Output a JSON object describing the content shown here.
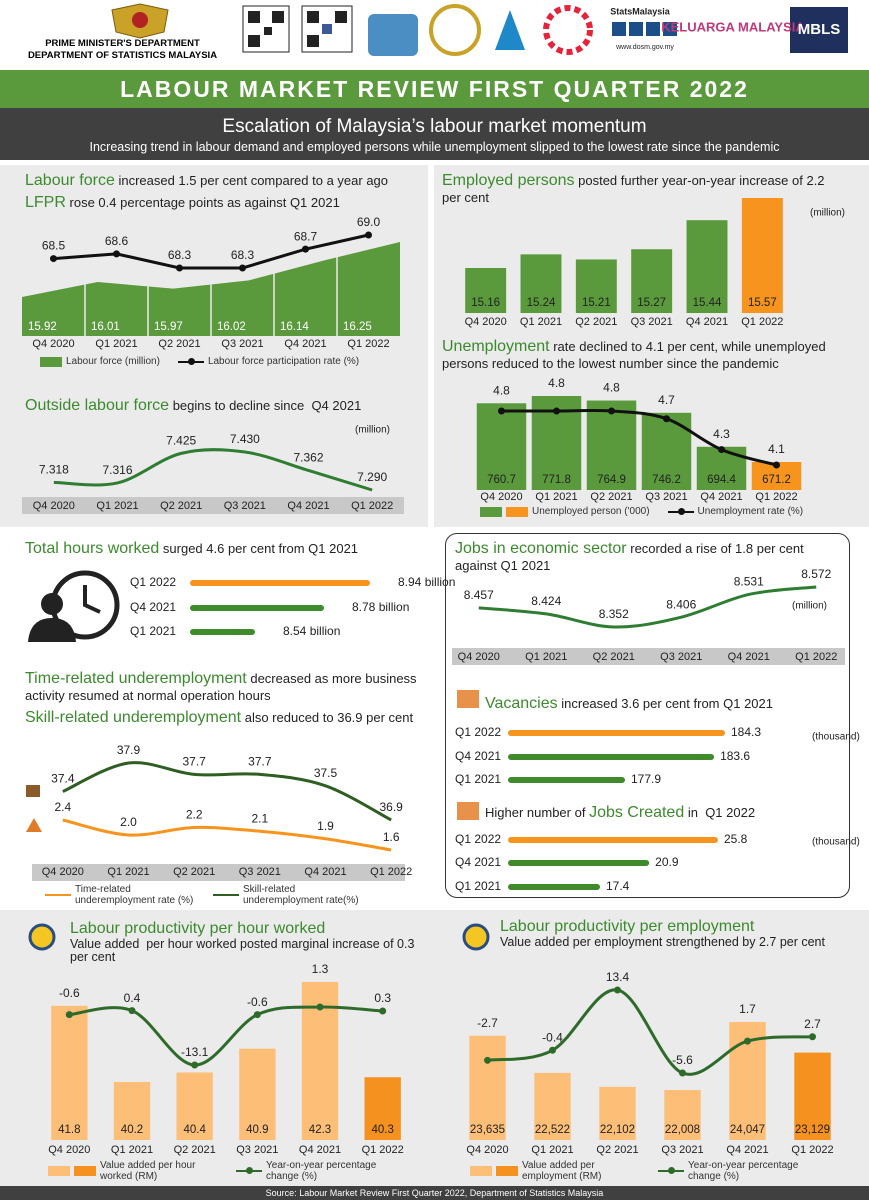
{
  "header": {
    "org": [
      "PRIME MINISTER'S DEPARTMENT",
      "DEPARTMENT OF STATISTICS MALAYSIA"
    ],
    "logos": [
      "StatsMalaysia",
      "www.dosm.gov.my",
      "KELUARGA MALAYSIA",
      "MBLS"
    ],
    "title": "LABOUR MARKET REVIEW FIRST QUARTER 2022",
    "headline": "Escalation of Malaysia’s labour market momentum",
    "subheadline": "Increasing trend in labour demand and employed persons while unemployment slipped to the lowest rate since the pandemic"
  },
  "chart_data": [
    {
      "type": "combo",
      "titles": [
        {
          "parts": [
            "Labour force",
            " increased 1.5 per cent compared to a year ago"
          ],
          "highlight": 0
        },
        {
          "parts": [
            "LFPR",
            " rose 0.4 percentage points as against Q1 2021"
          ],
          "highlight": 0
        }
      ],
      "categories": [
        "Q4 2020",
        "Q1 2021",
        "Q2 2021",
        "Q3 2021",
        "Q4 2021",
        "Q1 2022"
      ],
      "series": [
        {
          "name": "Labour force (million)",
          "kind": "area",
          "color": "#5b9a3c",
          "values": [
            15.92,
            16.01,
            15.97,
            16.02,
            16.14,
            16.25
          ]
        },
        {
          "name": "Labour force participation rate (%)",
          "kind": "line",
          "color": "#111111",
          "markers": true,
          "values": [
            68.5,
            68.6,
            68.3,
            68.3,
            68.7,
            69.0
          ],
          "value_labels": [
            "68.5",
            "68.6",
            "68.3",
            "68.3",
            "68.7",
            "69.0"
          ]
        }
      ],
      "legend": true
    },
    {
      "type": "combo",
      "titles": [
        {
          "parts": [
            "Outside labour force",
            " begins to decline since  Q4 2021"
          ],
          "highlight": 0
        }
      ],
      "unit": "(million)",
      "categories": [
        "Q4 2020",
        "Q1 2021",
        "Q2 2021",
        "Q3 2021",
        "Q4 2021",
        "Q1 2022"
      ],
      "series": [
        {
          "kind": "line",
          "smooth": true,
          "color": "#2e7d32",
          "values": [
            7.318,
            7.316,
            7.425,
            7.43,
            7.362,
            7.29
          ],
          "value_labels": [
            "7.318",
            "7.316",
            "7.425",
            "7.430",
            "7.362",
            "7.290"
          ]
        }
      ],
      "legend": false
    },
    {
      "type": "combo",
      "titles": [
        {
          "parts": [
            "Employed persons",
            " posted further year-on-year increase of 2.2 per cent"
          ],
          "highlight": 0
        }
      ],
      "unit": "(million)",
      "categories": [
        "Q4 2020",
        "Q1 2021",
        "Q2 2021",
        "Q3 2021",
        "Q4 2021",
        "Q1 2022"
      ],
      "series": [
        {
          "kind": "bar",
          "colors": [
            "#5b9a3c",
            "#5b9a3c",
            "#5b9a3c",
            "#5b9a3c",
            "#5b9a3c",
            "#f7941d"
          ],
          "values": [
            15.16,
            15.24,
            15.21,
            15.27,
            15.44,
            15.57
          ]
        }
      ],
      "legend": false
    },
    {
      "type": "combo",
      "titles": [
        {
          "parts": [
            "Unemployment",
            " rate declined to 4.1 per cent, while unemployed persons reduced to the lowest number since the pandemic"
          ],
          "highlight": 0
        }
      ],
      "categories": [
        "Q4 2020",
        "Q1 2021",
        "Q2 2021",
        "Q3 2021",
        "Q4 2021",
        "Q1 2022"
      ],
      "series": [
        {
          "name": "Unemployed person ('000)",
          "kind": "bar",
          "colors": [
            "#5b9a3c",
            "#5b9a3c",
            "#5b9a3c",
            "#5b9a3c",
            "#5b9a3c",
            "#f7941d"
          ],
          "values": [
            760.7,
            771.8,
            764.9,
            746.2,
            694.4,
            671.2
          ]
        },
        {
          "name": "Unemployment rate (%)",
          "kind": "line",
          "smooth": true,
          "color": "#111111",
          "markers": true,
          "values": [
            4.8,
            4.8,
            4.8,
            4.7,
            4.3,
            4.1
          ]
        }
      ],
      "legend": true
    },
    {
      "type": "hbar",
      "titles": [
        {
          "parts": [
            "Total hours worked",
            " surged 4.6 per cent from Q1 2021"
          ],
          "highlight": 0
        }
      ],
      "categories": [
        "Q1 2022",
        "Q4 2021",
        "Q1 2021"
      ],
      "values": [
        8.94,
        8.78,
        8.54
      ],
      "value_labels": [
        "8.94 billion",
        "8.78 billion",
        "8.54 billion"
      ],
      "colors": [
        "#f7941d",
        "#3f8a2a",
        "#3f8a2a"
      ]
    },
    {
      "type": "combo",
      "titles": [
        {
          "parts": [
            "Time-related underemployment",
            " decreased as more business activity resumed at normal operation hours"
          ],
          "highlight": 0
        },
        {
          "parts": [
            "Skill-related underemployment",
            " also reduced to 36.9 per cent"
          ],
          "highlight": 0
        }
      ],
      "categories": [
        "Q4 2020",
        "Q1 2021",
        "Q2 2021",
        "Q3 2021",
        "Q4 2021",
        "Q1 2022"
      ],
      "series": [
        {
          "name": "Time-related underemployment rate (%)",
          "kind": "line",
          "smooth": true,
          "color": "#f7941d",
          "values": [
            2.4,
            2.0,
            2.2,
            2.1,
            1.9,
            1.6
          ],
          "value_labels": [
            "2.4",
            "2.0",
            "2.2",
            "2.1",
            "1.9",
            "1.6"
          ]
        },
        {
          "name": "Skill-related underemployment rate(%)",
          "kind": "line",
          "smooth": true,
          "color": "#2e5e22",
          "values": [
            37.4,
            37.9,
            37.7,
            37.7,
            37.5,
            36.9
          ]
        }
      ],
      "legend": true
    },
    {
      "type": "combo",
      "titles": [
        {
          "parts": [
            "Jobs in economic sector",
            " recorded a rise of 1.8 per cent against Q1 2021"
          ],
          "highlight": 0
        }
      ],
      "unit": "(million)",
      "categories": [
        "Q4 2020",
        "Q1 2021",
        "Q2 2021",
        "Q3 2021",
        "Q4 2021",
        "Q1 2022"
      ],
      "series": [
        {
          "kind": "line",
          "smooth": true,
          "color": "#2e7d32",
          "values": [
            8.457,
            8.424,
            8.352,
            8.406,
            8.531,
            8.572
          ]
        }
      ],
      "legend": false
    },
    {
      "type": "hbar",
      "titles": [
        {
          "parts": [
            "Vacancies",
            " increased 3.6 per cent from Q1 2021"
          ],
          "highlight": 0
        }
      ],
      "unit": "(thousand)",
      "categories": [
        "Q1 2022",
        "Q4 2021",
        "Q1 2021"
      ],
      "values": [
        184.3,
        183.6,
        177.9
      ],
      "colors": [
        "#f7941d",
        "#3f8a2a",
        "#3f8a2a"
      ]
    },
    {
      "type": "hbar",
      "titles": [
        {
          "parts": [
            "Higher number of ",
            "Jobs Created",
            " in  Q1 2022"
          ],
          "highlight": 1
        }
      ],
      "unit": "(thousand)",
      "categories": [
        "Q1 2022",
        "Q4 2021",
        "Q1 2021"
      ],
      "values": [
        25.8,
        20.9,
        17.4
      ],
      "colors": [
        "#f7941d",
        "#3f8a2a",
        "#3f8a2a"
      ]
    },
    {
      "type": "combo",
      "titles": [
        {
          "parts": [
            "Labour productivity per hour worked"
          ],
          "highlight": 0
        }
      ],
      "subtitle": "Value added  per hour worked posted marginal increase of 0.3 per cent",
      "categories": [
        "Q4 2020",
        "Q1 2021",
        "Q2 2021",
        "Q3 2021",
        "Q4 2021",
        "Q1 2022"
      ],
      "series": [
        {
          "name": "Value added per hour worked (RM)",
          "kind": "bar",
          "colors": [
            "#fdbf77",
            "#fdbf77",
            "#fdbf77",
            "#fdbf77",
            "#fdbf77",
            "#f5911e"
          ],
          "values": [
            41.8,
            40.2,
            40.4,
            40.9,
            42.3,
            40.3
          ]
        },
        {
          "name": "Year-on-year percentage change (%)",
          "kind": "line",
          "smooth": true,
          "color": "#2e6b2a",
          "markers": true,
          "values": [
            -0.6,
            0.4,
            -13.1,
            -0.6,
            1.3,
            0.3
          ]
        }
      ],
      "legend": true
    },
    {
      "type": "combo",
      "titles": [
        {
          "parts": [
            "Labour productivity per employment"
          ],
          "highlight": 0
        }
      ],
      "subtitle": "Value added per employment strengthened by 2.7 per cent",
      "categories": [
        "Q4 2020",
        "Q1 2021",
        "Q2 2021",
        "Q3 2021",
        "Q4 2021",
        "Q1 2022"
      ],
      "series": [
        {
          "name": "Value added per employment (RM)",
          "kind": "bar",
          "colors": [
            "#fdbf77",
            "#fdbf77",
            "#fdbf77",
            "#fdbf77",
            "#fdbf77",
            "#f5911e"
          ],
          "values": [
            23635,
            22522,
            22102,
            22008,
            24047,
            23129
          ],
          "value_labels": [
            "23,635",
            "22,522",
            "22,102",
            "22,008",
            "24,047",
            "23,129"
          ]
        },
        {
          "name": "Year-on-year percentage change (%)",
          "kind": "line",
          "smooth": true,
          "color": "#2e6b2a",
          "markers": true,
          "values": [
            -2.7,
            -0.4,
            13.4,
            -5.6,
            1.7,
            2.7
          ]
        }
      ],
      "legend": true
    }
  ],
  "footer": "Source: Labour Market Review First Quarter 2022, Department of Statistics Malaysia"
}
